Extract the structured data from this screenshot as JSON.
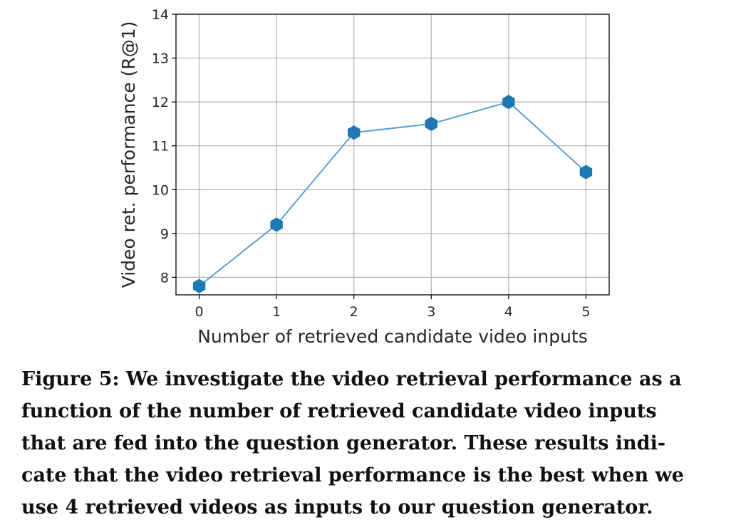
{
  "chart_data": {
    "type": "line",
    "x": [
      0,
      1,
      2,
      3,
      4,
      5
    ],
    "series": [
      {
        "values": [
          7.8,
          9.2,
          11.3,
          11.5,
          12.0,
          10.4
        ]
      }
    ],
    "xlabel": "Number of retrieved candidate video inputs",
    "ylabel": "Video ret. performance (R@1)",
    "xticks": [
      "0",
      "1",
      "2",
      "3",
      "4",
      "5"
    ],
    "yticks": [
      "8",
      "9",
      "10",
      "11",
      "12",
      "13",
      "14"
    ],
    "xlim": [
      -0.3,
      5.3
    ],
    "ylim": [
      7.6,
      14
    ],
    "grid": true,
    "line_color": "#5a9fd4",
    "marker_color": "#1f77b4",
    "marker": "hexagon"
  },
  "caption": {
    "lines": [
      "Figure 5: We investigate the video retrieval performance as a",
      "function of the number of retrieved candidate video inputs",
      "that are fed into the question generator. These results indi-",
      "cate that the video retrieval performance is the best when we",
      "use 4 retrieved videos as inputs to our question generator."
    ]
  }
}
